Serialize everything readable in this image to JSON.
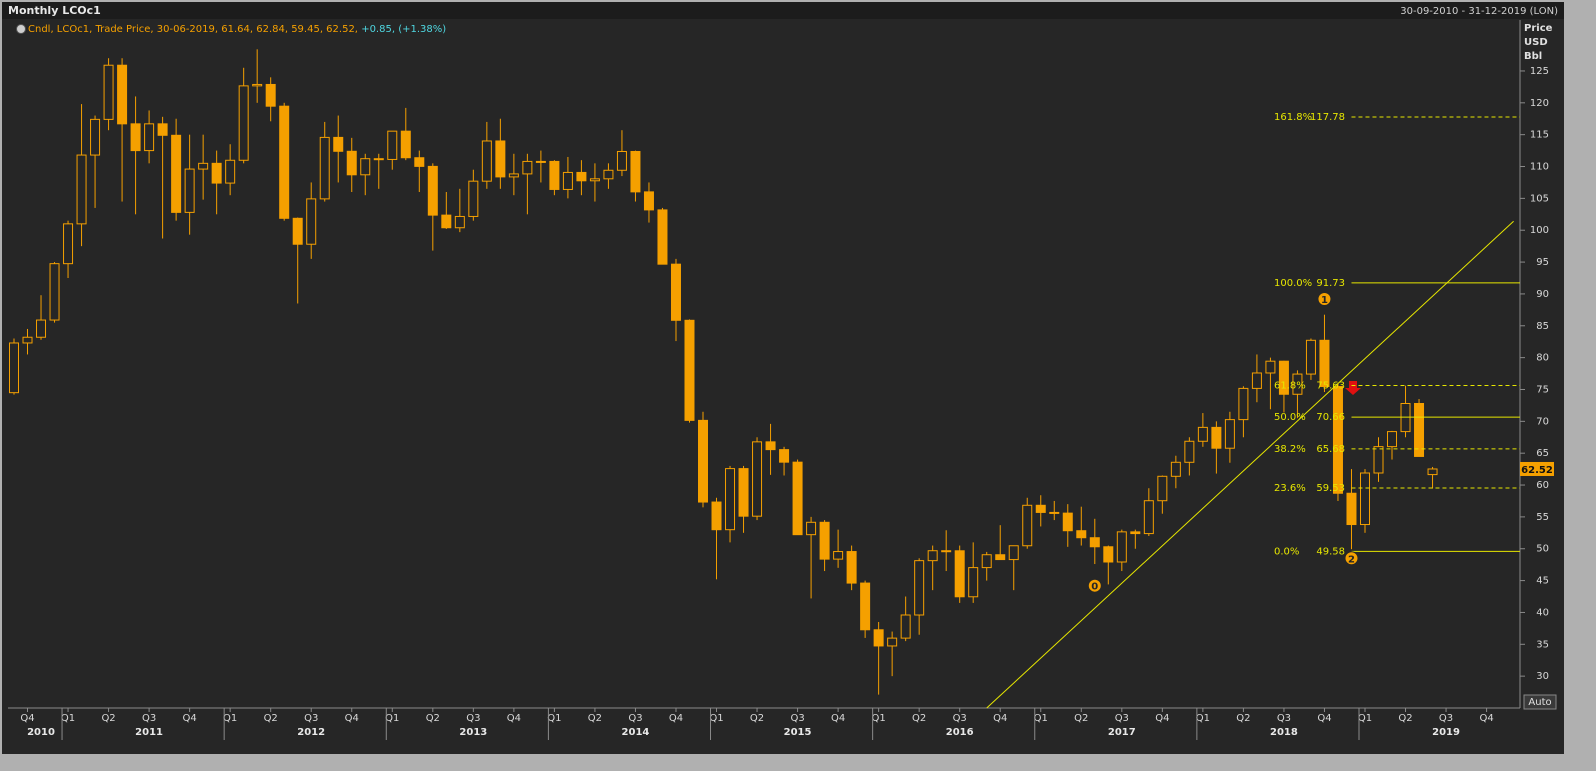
{
  "chart_data": {
    "type": "candlestick",
    "title": "Monthly LCOc1",
    "date_range": "30-09-2010 - 31-12-2019 (LON)",
    "legend": "Cndl, LCOc1, Trade Price, 30-06-2019, 61.64, 62.84, 59.45, 62.52,",
    "change": "+0.85, (+1.38%)",
    "y_label": [
      "Price",
      "USD",
      "Bbl"
    ],
    "button": "Auto",
    "up_color": "#f5a000",
    "down_color": "#f5a000",
    "x": [
      "2010-09",
      "2010-10",
      "2010-11",
      "2010-12",
      "2011-01",
      "2011-02",
      "2011-03",
      "2011-04",
      "2011-05",
      "2011-06",
      "2011-07",
      "2011-08",
      "2011-09",
      "2011-10",
      "2011-11",
      "2011-12",
      "2012-01",
      "2012-02",
      "2012-03",
      "2012-04",
      "2012-05",
      "2012-06",
      "2012-07",
      "2012-08",
      "2012-09",
      "2012-10",
      "2012-11",
      "2012-12",
      "2013-01",
      "2013-02",
      "2013-03",
      "2013-04",
      "2013-05",
      "2013-06",
      "2013-07",
      "2013-08",
      "2013-09",
      "2013-10",
      "2013-11",
      "2013-12",
      "2014-01",
      "2014-02",
      "2014-03",
      "2014-04",
      "2014-05",
      "2014-06",
      "2014-07",
      "2014-08",
      "2014-09",
      "2014-10",
      "2014-11",
      "2014-12",
      "2015-01",
      "2015-02",
      "2015-03",
      "2015-04",
      "2015-05",
      "2015-06",
      "2015-07",
      "2015-08",
      "2015-09",
      "2015-10",
      "2015-11",
      "2015-12",
      "2016-01",
      "2016-02",
      "2016-03",
      "2016-04",
      "2016-05",
      "2016-06",
      "2016-07",
      "2016-08",
      "2016-09",
      "2016-10",
      "2016-11",
      "2016-12",
      "2017-01",
      "2017-02",
      "2017-03",
      "2017-04",
      "2017-05",
      "2017-06",
      "2017-07",
      "2017-08",
      "2017-09",
      "2017-10",
      "2017-11",
      "2017-12",
      "2018-01",
      "2018-02",
      "2018-03",
      "2018-04",
      "2018-05",
      "2018-06",
      "2018-07",
      "2018-08",
      "2018-09",
      "2018-10",
      "2018-11",
      "2018-12",
      "2019-01",
      "2019-02",
      "2019-03",
      "2019-04",
      "2019-05",
      "2019-06"
    ],
    "open": [
      74.5,
      82.3,
      83.2,
      85.9,
      94.75,
      101,
      111.8,
      117.4,
      125.9,
      116.7,
      112.5,
      116.7,
      114.9,
      102.8,
      109.6,
      110.5,
      107.4,
      110.98,
      122.66,
      122.88,
      119.47,
      101.87,
      97.8,
      104.92,
      114.57,
      112.39,
      108.7,
      111.23,
      111.11,
      115.55,
      111.38,
      110.02,
      102.37,
      100.39,
      102.16,
      107.7,
      114.01,
      108.37,
      108.84,
      110.8,
      110.8,
      106.4,
      109.07,
      107.76,
      108.07,
      109.41,
      112.36,
      106.02,
      103.19,
      94.67,
      85.86,
      70.15,
      57.33,
      52.99,
      62.58,
      55.11,
      66.78,
      65.56,
      63.59,
      52.21,
      54.15,
      48.37,
      49.56,
      44.61,
      37.28,
      34.74,
      35.97,
      39.6,
      48.13,
      49.69,
      49.68,
      42.46,
      47.04,
      49.06,
      48.3,
      50.47,
      56.82,
      55.7,
      55.59,
      52.83,
      51.73,
      50.31,
      47.92,
      52.65,
      52.38,
      57.54,
      61.37,
      63.57,
      66.87,
      69.05,
      65.78,
      70.27,
      75.17,
      77.59,
      79.44,
      74.25,
      77.42,
      82.72,
      75.47,
      58.71,
      53.8,
      61.89,
      66.03,
      68.39,
      72.8,
      61.64
    ],
    "high": [
      83,
      84.5,
      89.8,
      95,
      101.5,
      119.8,
      118,
      127,
      127,
      121,
      118.8,
      117.8,
      117.5,
      115,
      115,
      112.5,
      113.5,
      125.5,
      128.4,
      124,
      120,
      102,
      107.5,
      117,
      118,
      114.5,
      112,
      112,
      115.5,
      119.2,
      112.5,
      110.5,
      106,
      106.5,
      109.5,
      117,
      117.5,
      112,
      112,
      112.5,
      111,
      111.5,
      111,
      110.5,
      110.5,
      115.7,
      112.5,
      107.5,
      103.5,
      95.5,
      86,
      71.5,
      58,
      63,
      63,
      67.5,
      69.6,
      66,
      64,
      55,
      54.5,
      53,
      50.5,
      45,
      38.5,
      37,
      42.5,
      48.5,
      50.5,
      52.9,
      50.5,
      51,
      49.5,
      53.7,
      50.5,
      58,
      58.4,
      57.5,
      57,
      56.6,
      54.7,
      50.5,
      53,
      53,
      59.5,
      61.5,
      64.6,
      67.5,
      71.3,
      70,
      71.5,
      75.5,
      80.5,
      80,
      79.5,
      78,
      83,
      86.74,
      76,
      62.5,
      62.5,
      67.5,
      68.5,
      75.6,
      73.5,
      62.84
    ],
    "low": [
      74.2,
      80.5,
      82.8,
      85.5,
      92.5,
      97.5,
      103.5,
      115.7,
      104.5,
      102.5,
      110.5,
      98.7,
      101.5,
      99.3,
      104.8,
      102.5,
      105.5,
      110.5,
      120,
      117.1,
      101.5,
      88.5,
      95.5,
      104.5,
      107.5,
      106,
      105.5,
      106.5,
      109.5,
      111,
      106,
      96.8,
      100.2,
      99.7,
      101.5,
      106.5,
      106.5,
      105.5,
      102.5,
      107.5,
      105.5,
      105,
      105.5,
      104.5,
      106.5,
      108.5,
      104.5,
      101.2,
      95.5,
      82.6,
      69.8,
      56.5,
      45.2,
      51,
      52.5,
      54.5,
      61.6,
      61.5,
      52.2,
      42.2,
      46.5,
      47,
      43.5,
      36,
      27.1,
      30,
      35.5,
      36.5,
      43.5,
      46.5,
      41.5,
      41.5,
      45,
      48.5,
      43.5,
      50,
      53.5,
      54.5,
      50.3,
      50.5,
      47.6,
      44.4,
      46.5,
      50,
      52,
      55.5,
      59.5,
      61.5,
      66,
      61.8,
      63.5,
      67.5,
      73,
      71.9,
      71.4,
      70.5,
      76.5,
      74.6,
      57.5,
      49.93,
      52.5,
      60.5,
      64,
      67.5,
      64.5,
      59.45
    ],
    "close": [
      82.3,
      83.2,
      85.9,
      94.75,
      101,
      111.8,
      117.4,
      125.9,
      116.7,
      112.5,
      116.7,
      114.9,
      102.8,
      109.6,
      110.5,
      107.4,
      110.98,
      122.66,
      122.88,
      119.47,
      101.87,
      97.8,
      104.92,
      114.57,
      112.39,
      108.7,
      111.23,
      111.11,
      115.55,
      111.38,
      110.02,
      102.37,
      100.39,
      102.16,
      107.7,
      114.01,
      108.37,
      108.84,
      110.8,
      110.8,
      106.4,
      109.07,
      107.76,
      108.07,
      109.41,
      112.36,
      106.02,
      103.19,
      94.67,
      85.86,
      70.15,
      57.33,
      52.99,
      62.58,
      55.11,
      66.78,
      65.56,
      63.59,
      52.21,
      54.15,
      48.37,
      49.56,
      44.61,
      37.28,
      34.74,
      35.97,
      39.6,
      48.13,
      49.69,
      49.68,
      42.46,
      47.04,
      49.06,
      48.3,
      50.47,
      56.82,
      55.7,
      55.59,
      52.83,
      51.73,
      50.31,
      47.92,
      52.65,
      52.38,
      57.54,
      61.37,
      63.57,
      66.87,
      69.05,
      65.78,
      70.27,
      75.17,
      77.59,
      79.44,
      74.25,
      77.42,
      82.72,
      75.47,
      58.71,
      53.8,
      61.89,
      66.03,
      68.39,
      72.8,
      64.49,
      62.52
    ],
    "xlim": [
      "2010-09",
      "2019-12"
    ],
    "ylim": [
      25,
      133
    ],
    "yticks": [
      30,
      35,
      40,
      45,
      50,
      55,
      60,
      65,
      70,
      75,
      80,
      85,
      90,
      95,
      100,
      105,
      110,
      115,
      120,
      125
    ],
    "xticks": [
      {
        "value": "2010-10",
        "label": "Q4"
      },
      {
        "value": "2011-01",
        "label": "Q1"
      },
      {
        "value": "2011-04",
        "label": "Q2"
      },
      {
        "value": "2011-07",
        "label": "Q3"
      },
      {
        "value": "2011-10",
        "label": "Q4"
      },
      {
        "value": "2012-01",
        "label": "Q1"
      },
      {
        "value": "2012-04",
        "label": "Q2"
      },
      {
        "value": "2012-07",
        "label": "Q3"
      },
      {
        "value": "2012-10",
        "label": "Q4"
      },
      {
        "value": "2013-01",
        "label": "Q1"
      },
      {
        "value": "2013-04",
        "label": "Q2"
      },
      {
        "value": "2013-07",
        "label": "Q3"
      },
      {
        "value": "2013-10",
        "label": "Q4"
      },
      {
        "value": "2014-01",
        "label": "Q1"
      },
      {
        "value": "2014-04",
        "label": "Q2"
      },
      {
        "value": "2014-07",
        "label": "Q3"
      },
      {
        "value": "2014-10",
        "label": "Q4"
      },
      {
        "value": "2015-01",
        "label": "Q1"
      },
      {
        "value": "2015-04",
        "label": "Q2"
      },
      {
        "value": "2015-07",
        "label": "Q3"
      },
      {
        "value": "2015-10",
        "label": "Q4"
      },
      {
        "value": "2016-01",
        "label": "Q1"
      },
      {
        "value": "2016-04",
        "label": "Q2"
      },
      {
        "value": "2016-07",
        "label": "Q3"
      },
      {
        "value": "2016-10",
        "label": "Q4"
      },
      {
        "value": "2017-01",
        "label": "Q1"
      },
      {
        "value": "2017-04",
        "label": "Q2"
      },
      {
        "value": "2017-07",
        "label": "Q3"
      },
      {
        "value": "2017-10",
        "label": "Q4"
      },
      {
        "value": "2018-01",
        "label": "Q1"
      },
      {
        "value": "2018-04",
        "label": "Q2"
      },
      {
        "value": "2018-07",
        "label": "Q3"
      },
      {
        "value": "2018-10",
        "label": "Q4"
      },
      {
        "value": "2019-01",
        "label": "Q1"
      },
      {
        "value": "2019-04",
        "label": "Q2"
      },
      {
        "value": "2019-07",
        "label": "Q3"
      },
      {
        "value": "2019-10",
        "label": "Q4"
      }
    ],
    "year_ticks": [
      {
        "value": "2010-11",
        "label": "2010"
      },
      {
        "value": "2011-07",
        "label": "2011"
      },
      {
        "value": "2012-07",
        "label": "2012"
      },
      {
        "value": "2013-07",
        "label": "2013"
      },
      {
        "value": "2014-07",
        "label": "2014"
      },
      {
        "value": "2015-07",
        "label": "2015"
      },
      {
        "value": "2016-07",
        "label": "2016"
      },
      {
        "value": "2017-07",
        "label": "2017"
      },
      {
        "value": "2018-07",
        "label": "2018"
      },
      {
        "value": "2019-07",
        "label": "2019"
      }
    ],
    "fibonacci": {
      "start": "2018-12",
      "color": "#e6e600",
      "levels": [
        {
          "label": "161.8%",
          "value": 117.78,
          "dashed": true
        },
        {
          "label": "100.0%",
          "value": 91.73,
          "dashed": false
        },
        {
          "label": "61.8%",
          "value": 75.63,
          "dashed": true
        },
        {
          "label": "50.0%",
          "value": 70.66,
          "dashed": false
        },
        {
          "label": "38.2%",
          "value": 65.68,
          "dashed": true
        },
        {
          "label": "23.6%",
          "value": 59.53,
          "dashed": true
        },
        {
          "label": "0.0%",
          "value": 49.58,
          "dashed": false
        }
      ]
    },
    "trendline": {
      "x": [
        "2016-09",
        "2019-12"
      ],
      "y": [
        25,
        101.4
      ],
      "color": "#e6e600"
    },
    "markers": [
      {
        "label": "0",
        "x": "2017-05",
        "y": 44.2
      },
      {
        "label": "1",
        "x": "2018-10",
        "y": 89.2
      },
      {
        "label": "2",
        "x": "2018-12",
        "y": 48.5
      }
    ]
  }
}
